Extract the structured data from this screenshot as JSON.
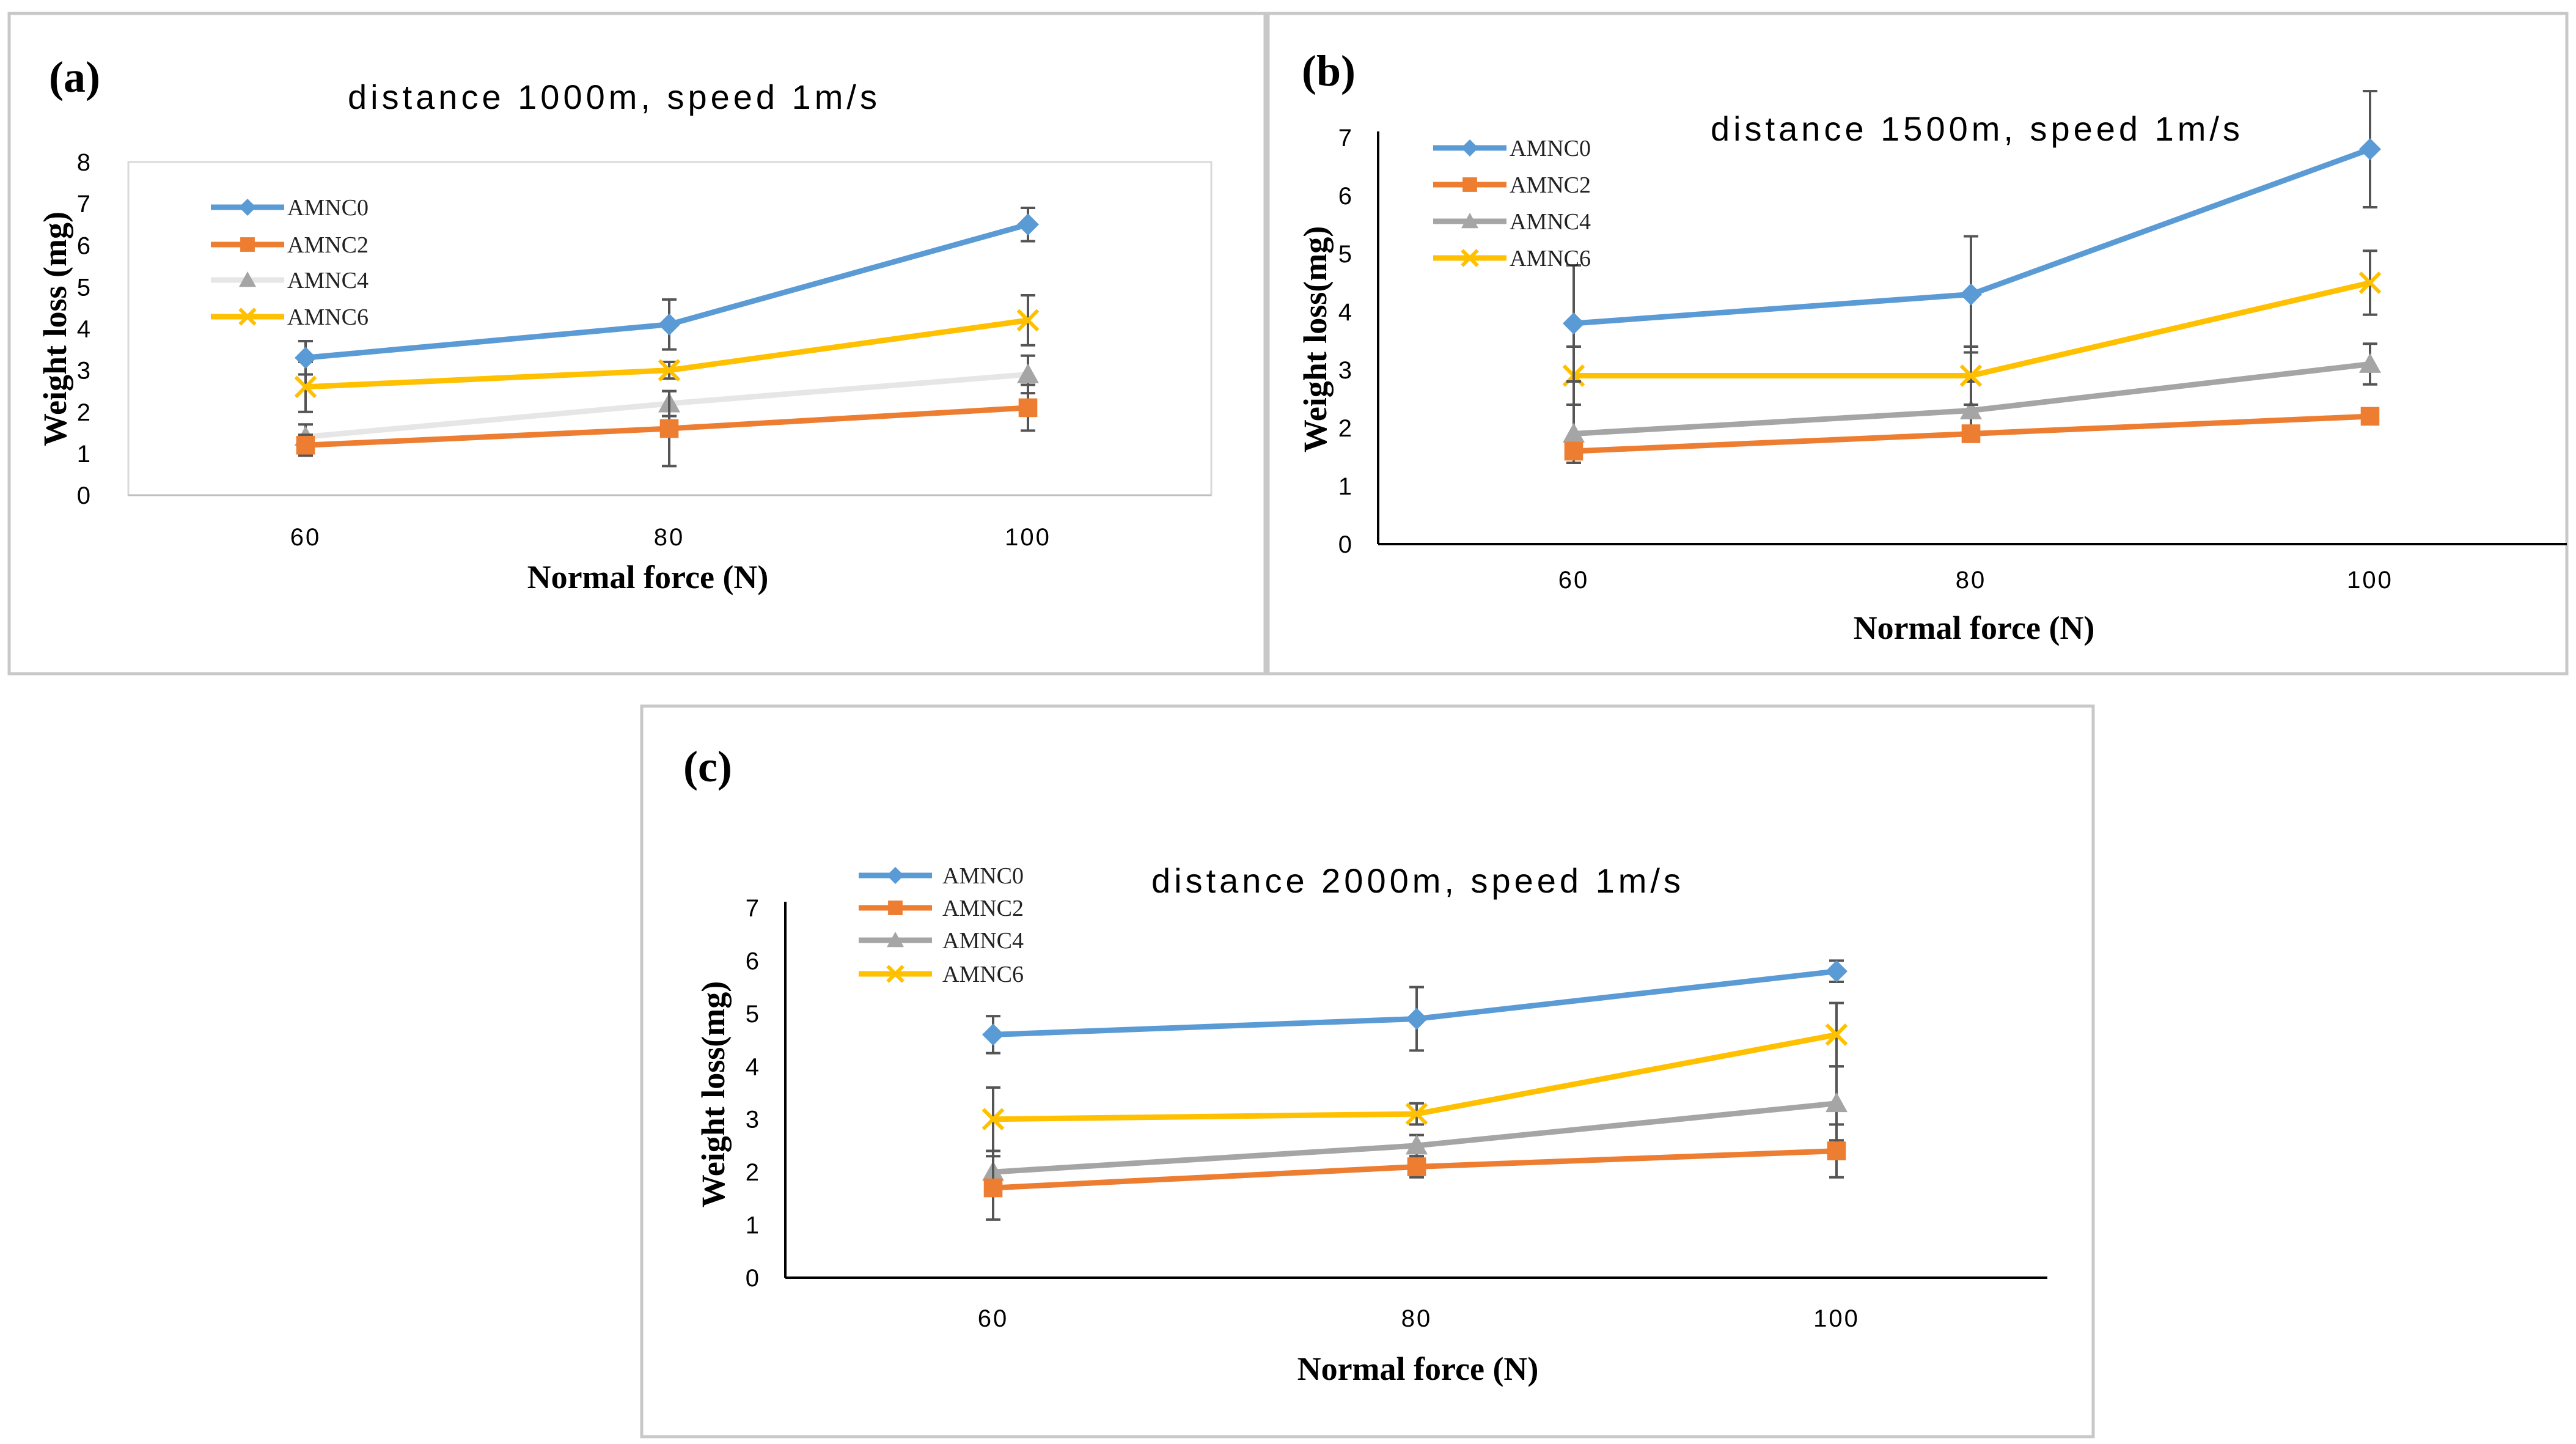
{
  "series_styles": [
    {
      "name": "AMNC0",
      "color": "#5b9bd5",
      "marker": "diamond"
    },
    {
      "name": "AMNC2",
      "color": "#ed7d31",
      "marker": "square"
    },
    {
      "name": "AMNC4",
      "color": "#a5a5a5",
      "marker": "triangle"
    },
    {
      "name": "AMNC6",
      "color": "#ffc000",
      "marker": "x"
    }
  ],
  "chart_data": [
    {
      "type": "line",
      "panel_label": "(a)",
      "title": "distance 1000m, speed 1m/s",
      "xlabel": "Normal force (N)",
      "ylabel": "Weight loss (mg)",
      "categories": [
        "60",
        "80",
        "100"
      ],
      "ylim": [
        0,
        8
      ],
      "yticks": [
        0,
        1,
        2,
        3,
        4,
        5,
        6,
        7,
        8
      ],
      "legend_position": "top-left",
      "series": [
        {
          "name": "AMNC0",
          "values": [
            3.3,
            4.1,
            6.5
          ],
          "errors": [
            0.4,
            0.6,
            0.4
          ]
        },
        {
          "name": "AMNC2",
          "values": [
            1.2,
            1.6,
            2.1
          ],
          "errors": [
            0.25,
            0.9,
            0.55
          ]
        },
        {
          "name": "AMNC4",
          "values": [
            1.4,
            2.2,
            2.9
          ],
          "errors": [
            0.3,
            0.3,
            0.45
          ],
          "line_color": "#e6e6e6"
        },
        {
          "name": "AMNC6",
          "values": [
            2.6,
            3.0,
            4.2
          ],
          "errors": [
            0.6,
            0.2,
            0.6
          ]
        }
      ]
    },
    {
      "type": "line",
      "panel_label": "(b)",
      "title": "distance 1500m, speed 1m/s",
      "xlabel": "Normal force (N)",
      "ylabel": "Weight loss(mg)",
      "categories": [
        "60",
        "80",
        "100"
      ],
      "ylim": [
        0,
        7
      ],
      "yticks": [
        0,
        1,
        2,
        3,
        4,
        5,
        6,
        7
      ],
      "legend_position": "top-left",
      "series": [
        {
          "name": "AMNC0",
          "values": [
            3.8,
            4.3,
            6.8
          ],
          "errors": [
            1.0,
            1.0,
            1.0
          ]
        },
        {
          "name": "AMNC2",
          "values": [
            1.6,
            1.9,
            2.2
          ],
          "errors": [
            0.1,
            0.1,
            0.1
          ]
        },
        {
          "name": "AMNC4",
          "values": [
            1.9,
            2.3,
            3.1
          ],
          "errors": [
            0.5,
            0.5,
            0.35
          ]
        },
        {
          "name": "AMNC6",
          "values": [
            2.9,
            2.9,
            4.5
          ],
          "errors": [
            0.5,
            0.5,
            0.55
          ]
        }
      ]
    },
    {
      "type": "line",
      "panel_label": "(c)",
      "title": "distance 2000m, speed 1m/s",
      "xlabel": "Normal force (N)",
      "ylabel": "Weight loss(mg)",
      "categories": [
        "60",
        "80",
        "100"
      ],
      "ylim": [
        0,
        7
      ],
      "yticks": [
        0,
        1,
        2,
        3,
        4,
        5,
        6,
        7
      ],
      "legend_position": "top-left",
      "series": [
        {
          "name": "AMNC0",
          "values": [
            4.6,
            4.9,
            5.8
          ],
          "errors": [
            0.35,
            0.6,
            0.2
          ]
        },
        {
          "name": "AMNC2",
          "values": [
            1.7,
            2.1,
            2.4
          ],
          "errors": [
            0.6,
            0.2,
            0.5
          ]
        },
        {
          "name": "AMNC4",
          "values": [
            2.0,
            2.5,
            3.3
          ],
          "errors": [
            0.4,
            0.2,
            0.7
          ]
        },
        {
          "name": "AMNC6",
          "values": [
            3.0,
            3.1,
            4.6
          ],
          "errors": [
            0.6,
            0.2,
            0.6
          ]
        }
      ]
    }
  ]
}
